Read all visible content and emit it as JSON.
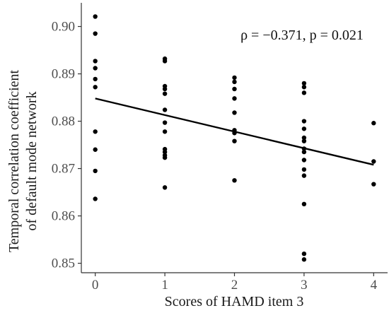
{
  "chart_data": {
    "type": "scatter",
    "title": "",
    "xlabel": "Scores of HAMD item 3",
    "ylabel_lines": [
      "Temporal correlation coefficient",
      "of default mode network"
    ],
    "xlim": [
      -0.2,
      4.2
    ],
    "ylim": [
      0.848,
      0.905
    ],
    "x_ticks": [
      0,
      1,
      2,
      3,
      4
    ],
    "y_ticks": [
      0.85,
      0.86,
      0.87,
      0.88,
      0.89,
      0.9
    ],
    "y_tick_labels": [
      "0.85",
      "0.86",
      "0.87",
      "0.88",
      "0.89",
      "0.90"
    ],
    "annotation": "ρ = −0.371, p = 0.021",
    "grid": false,
    "colors": {
      "points": "#000000",
      "line": "#000000",
      "axis": "#333333"
    },
    "points": [
      {
        "x": 0,
        "y": 0.9021
      },
      {
        "x": 0,
        "y": 0.8985
      },
      {
        "x": 0,
        "y": 0.8927
      },
      {
        "x": 0,
        "y": 0.8912
      },
      {
        "x": 0,
        "y": 0.8889
      },
      {
        "x": 0,
        "y": 0.8872
      },
      {
        "x": 0,
        "y": 0.8778
      },
      {
        "x": 0,
        "y": 0.874
      },
      {
        "x": 0,
        "y": 0.8695
      },
      {
        "x": 0,
        "y": 0.8636
      },
      {
        "x": 1,
        "y": 0.8932
      },
      {
        "x": 1,
        "y": 0.8927
      },
      {
        "x": 1,
        "y": 0.8874
      },
      {
        "x": 1,
        "y": 0.8868
      },
      {
        "x": 1,
        "y": 0.8858
      },
      {
        "x": 1,
        "y": 0.8824
      },
      {
        "x": 1,
        "y": 0.8797
      },
      {
        "x": 1,
        "y": 0.8778
      },
      {
        "x": 1,
        "y": 0.8741
      },
      {
        "x": 1,
        "y": 0.8735
      },
      {
        "x": 1,
        "y": 0.8728
      },
      {
        "x": 1,
        "y": 0.8723
      },
      {
        "x": 1,
        "y": 0.866
      },
      {
        "x": 2,
        "y": 0.8892
      },
      {
        "x": 2,
        "y": 0.8883
      },
      {
        "x": 2,
        "y": 0.8868
      },
      {
        "x": 2,
        "y": 0.8848
      },
      {
        "x": 2,
        "y": 0.8818
      },
      {
        "x": 2,
        "y": 0.8781
      },
      {
        "x": 2,
        "y": 0.8775
      },
      {
        "x": 2,
        "y": 0.8758
      },
      {
        "x": 2,
        "y": 0.8675
      },
      {
        "x": 3,
        "y": 0.888
      },
      {
        "x": 3,
        "y": 0.8872
      },
      {
        "x": 3,
        "y": 0.886
      },
      {
        "x": 3,
        "y": 0.88
      },
      {
        "x": 3,
        "y": 0.8784
      },
      {
        "x": 3,
        "y": 0.8765
      },
      {
        "x": 3,
        "y": 0.8758
      },
      {
        "x": 3,
        "y": 0.8742
      },
      {
        "x": 3,
        "y": 0.8735
      },
      {
        "x": 3,
        "y": 0.8718
      },
      {
        "x": 3,
        "y": 0.8698
      },
      {
        "x": 3,
        "y": 0.8685
      },
      {
        "x": 3,
        "y": 0.8625
      },
      {
        "x": 3,
        "y": 0.852
      },
      {
        "x": 3,
        "y": 0.8508
      },
      {
        "x": 4,
        "y": 0.8796
      },
      {
        "x": 4,
        "y": 0.8715
      },
      {
        "x": 4,
        "y": 0.8667
      }
    ],
    "trendline": {
      "x": [
        0,
        4
      ],
      "y": [
        0.8848,
        0.8708
      ]
    }
  }
}
